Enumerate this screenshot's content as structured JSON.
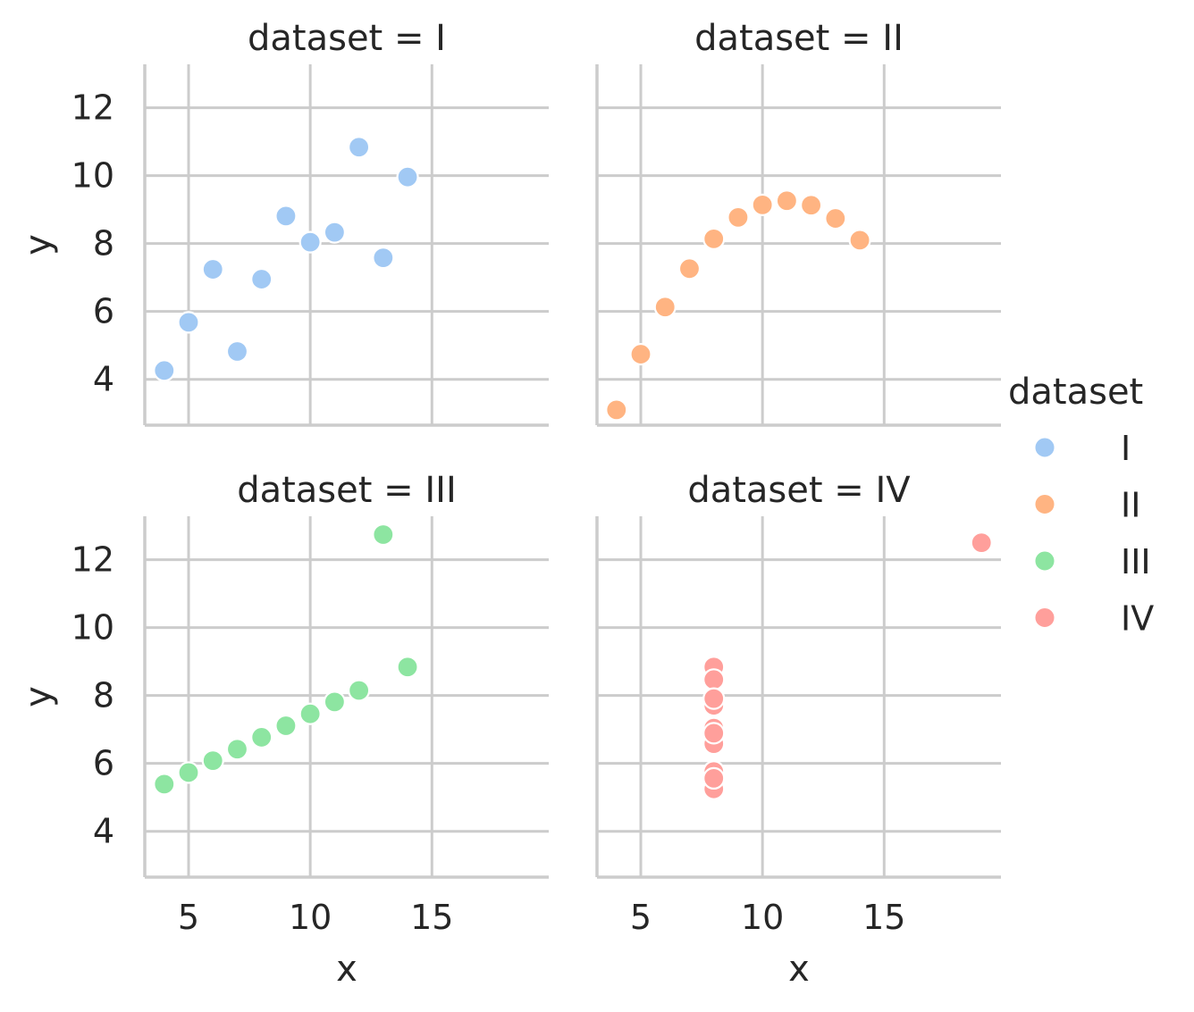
{
  "colors": {
    "I": "#a1c9f4",
    "II": "#ffb482",
    "III": "#8de5a1",
    "IV": "#ff9f9b"
  },
  "chart_data": {
    "type": "scatter",
    "facet_variable": "dataset",
    "xlabel": "x",
    "ylabel": "y",
    "xlim": [
      3.2,
      19.8
    ],
    "ylim": [
      2.65,
      13.28
    ],
    "xticks": [
      5,
      10,
      15
    ],
    "yticks": [
      4,
      6,
      8,
      10,
      12
    ],
    "grid": true,
    "legend": {
      "title": "dataset",
      "position": "right",
      "entries": [
        "I",
        "II",
        "III",
        "IV"
      ]
    },
    "panels": [
      {
        "title": "dataset = I",
        "series": "I",
        "x": [
          10,
          8,
          13,
          9,
          11,
          14,
          6,
          4,
          12,
          7,
          5
        ],
        "y": [
          8.04,
          6.95,
          7.58,
          8.81,
          8.33,
          9.96,
          7.24,
          4.26,
          10.84,
          4.82,
          5.68
        ]
      },
      {
        "title": "dataset = II",
        "series": "II",
        "x": [
          10,
          8,
          13,
          9,
          11,
          14,
          6,
          4,
          12,
          7,
          5
        ],
        "y": [
          9.14,
          8.14,
          8.74,
          8.77,
          9.26,
          8.1,
          6.13,
          3.1,
          9.13,
          7.26,
          4.74
        ]
      },
      {
        "title": "dataset = III",
        "series": "III",
        "x": [
          10,
          8,
          13,
          9,
          11,
          14,
          6,
          4,
          12,
          7,
          5
        ],
        "y": [
          7.46,
          6.77,
          12.74,
          7.11,
          7.81,
          8.84,
          6.08,
          5.39,
          8.15,
          6.42,
          5.73
        ]
      },
      {
        "title": "dataset = IV",
        "series": "IV",
        "x": [
          8,
          8,
          8,
          8,
          8,
          8,
          8,
          19,
          8,
          8,
          8
        ],
        "y": [
          6.58,
          5.76,
          7.71,
          8.84,
          8.47,
          7.04,
          5.25,
          12.5,
          5.56,
          7.91,
          6.89
        ]
      }
    ]
  }
}
